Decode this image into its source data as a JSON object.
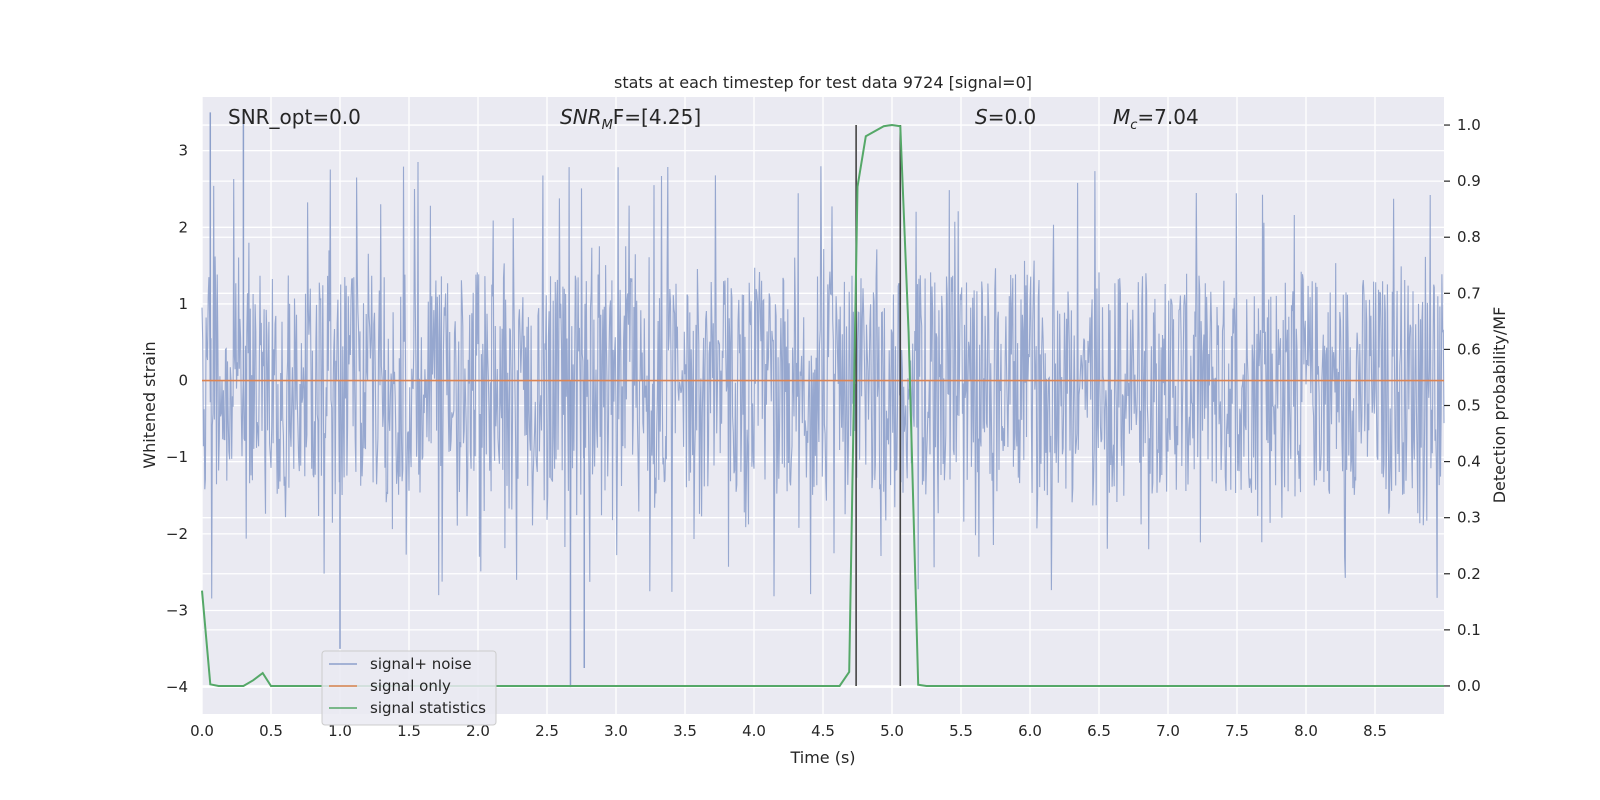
{
  "chart_data": {
    "type": "line",
    "title": "stats at each timestep for test data 9724 [signal=0]",
    "xlabel": "Time (s)",
    "ylabel_left": "Whitened strain",
    "ylabel_right": "Detection probability/MF",
    "xlim": [
      0.0,
      9.0
    ],
    "ylim_left": [
      -4.35,
      3.7
    ],
    "ylim_right": [
      -0.05,
      1.05
    ],
    "x_ticks": [
      "0.0",
      "0.5",
      "1.0",
      "1.5",
      "2.0",
      "2.5",
      "3.0",
      "3.5",
      "4.0",
      "4.5",
      "5.0",
      "5.5",
      "6.0",
      "6.5",
      "7.0",
      "7.5",
      "8.0",
      "8.5"
    ],
    "y_left_ticks": [
      "3",
      "2",
      "1",
      "0",
      "−1",
      "−2",
      "−3",
      "−4"
    ],
    "y_right_ticks": [
      "1.0",
      "0.9",
      "0.8",
      "0.7",
      "0.6",
      "0.5",
      "0.4",
      "0.3",
      "0.2",
      "0.1",
      "0.0"
    ],
    "grid": true,
    "legend_position": "lower-left",
    "annotations": {
      "snr_opt": "SNR_opt=0.0",
      "snr_mf_main": "SNR",
      "snr_mf_sub": "M",
      "snr_mf_rest": "F=[4.25]",
      "s_main": "S",
      "s_rest": "=0.0",
      "mc_main": "M",
      "mc_sub": "c",
      "mc_rest": "=7.04"
    },
    "vertical_lines_x": [
      4.74,
      5.06
    ],
    "colors": {
      "noise": "#8da0cb",
      "signal_only": "#dd8452",
      "statistics": "#55a868",
      "background": "#eaeaf2",
      "vline": "#444444"
    },
    "series": [
      {
        "name": "signal+ noise",
        "kind": "noise",
        "axis": "left",
        "typical_band": [
          -1.5,
          1.4
        ],
        "peak_range": [
          -4.0,
          3.5
        ],
        "values": [
          {
            "x": 0.06,
            "y": 3.5
          },
          {
            "x": 0.3,
            "y": 3.5
          },
          {
            "x": 1.0,
            "y": -3.5
          },
          {
            "x": 2.67,
            "y": -4.0
          },
          {
            "x": 2.77,
            "y": -3.75
          },
          {
            "x": 5.06,
            "y": 1.6
          }
        ]
      },
      {
        "name": "signal only",
        "kind": "flat",
        "axis": "left",
        "values": [
          {
            "x": 0.0,
            "y": 0.0
          },
          {
            "x": 9.0,
            "y": 0.0
          }
        ]
      },
      {
        "name": "signal statistics",
        "kind": "line",
        "axis": "right",
        "values": [
          {
            "x": 0.0,
            "y": 0.17
          },
          {
            "x": 0.06,
            "y": 0.003
          },
          {
            "x": 0.12,
            "y": 0.0
          },
          {
            "x": 0.3,
            "y": 0.0
          },
          {
            "x": 0.37,
            "y": 0.01
          },
          {
            "x": 0.44,
            "y": 0.023
          },
          {
            "x": 0.5,
            "y": 0.0
          },
          {
            "x": 4.62,
            "y": 0.0
          },
          {
            "x": 4.69,
            "y": 0.025
          },
          {
            "x": 4.75,
            "y": 0.89
          },
          {
            "x": 4.81,
            "y": 0.98
          },
          {
            "x": 4.94,
            "y": 0.998
          },
          {
            "x": 5.0,
            "y": 1.0
          },
          {
            "x": 5.06,
            "y": 0.998
          },
          {
            "x": 5.12,
            "y": 0.63
          },
          {
            "x": 5.19,
            "y": 0.002
          },
          {
            "x": 5.25,
            "y": 0.0
          },
          {
            "x": 9.0,
            "y": 0.0
          }
        ]
      }
    ]
  }
}
